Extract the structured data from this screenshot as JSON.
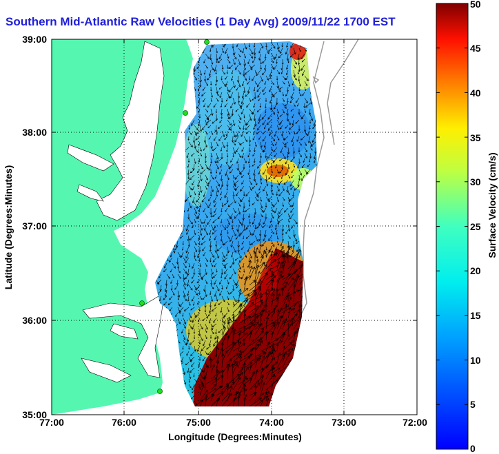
{
  "title": "Southern Mid-Atlantic Raw Velocities (1 Day Avg) 2009/11/22 1700 EST",
  "x_axis": {
    "label": "Longitude (Degrees:Minutes)",
    "ticks": [
      "77:00",
      "76:00",
      "75:00",
      "74:00",
      "73:00",
      "72:00"
    ]
  },
  "y_axis": {
    "label": "Latitude (Degrees:Minutes)",
    "ticks": [
      "39:00",
      "38:00",
      "37:00",
      "36:00",
      "35:00"
    ]
  },
  "colorbar": {
    "label": "Surface Velocity (cm/s)",
    "min": 0,
    "max": 50,
    "ticks": [
      "50",
      "45",
      "40",
      "35",
      "30",
      "25",
      "20",
      "15",
      "10",
      "5",
      "0"
    ],
    "colormap": "jet"
  },
  "colors": {
    "land": "#55f7b0",
    "title": "#1f1fd8",
    "stations": "#22dd22"
  }
}
